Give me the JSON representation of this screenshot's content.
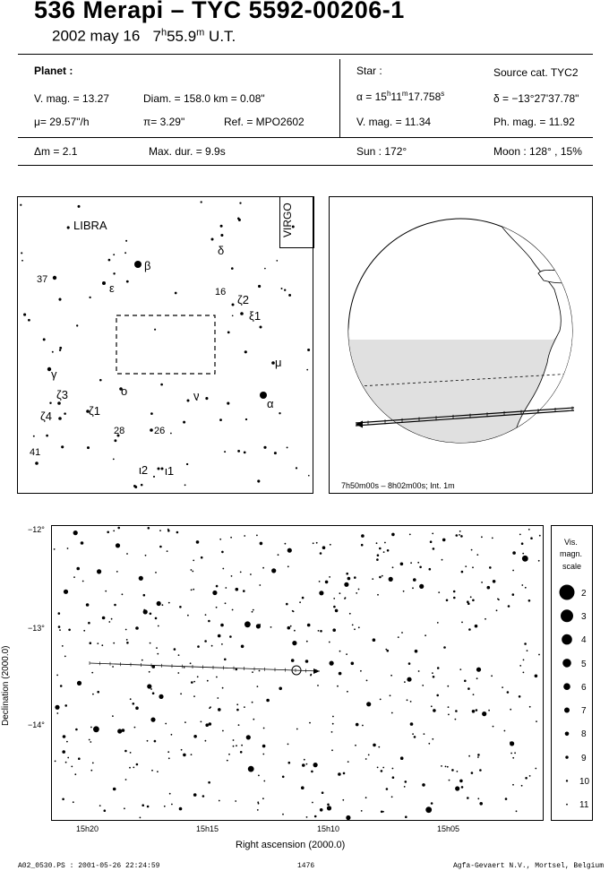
{
  "title": "536 Merapi  –  TYC 5592-00206-1",
  "date": "2002 may 16",
  "time_h": "7",
  "time_h_sup": "h",
  "time_m": "55.9",
  "time_m_sup": "m",
  "time_ut": " U.T.",
  "planet": {
    "heading": "Planet :",
    "vmag": "V. mag. = 13.27",
    "diam": "Diam. = 158.0 km = 0.08\"",
    "mu": "μ=  29.57\"/h",
    "pi": "π=  3.29\"",
    "ref": "Ref. = MPO2602"
  },
  "star": {
    "heading": "Star :",
    "source": "Source cat.  TYC2",
    "alpha_pre": "α = 15",
    "alpha_h": "h",
    "alpha_mid": "11",
    "alpha_m": "m",
    "alpha_post": "17.758",
    "alpha_s": "s",
    "delta": "δ = −13°27'37.78\"",
    "vmag": "V. mag. = 11.34",
    "phmag": "Ph. mag. = 11.92"
  },
  "summary": {
    "dm": "Δm = 2.1",
    "maxdur": "Max. dur. = 9.9s",
    "sun": "Sun : 172°",
    "moon": "Moon : 128° , 15%"
  },
  "finder": {
    "constellation": "LIBRA",
    "virgo": "VIRGO",
    "labels": [
      "β",
      "ε",
      "37",
      "δ",
      "16",
      "ζ2",
      "ξ1",
      "μ",
      "γ",
      "ο",
      "ν",
      "α",
      "ζ3",
      "ζ4",
      "ζ1",
      "28",
      "26",
      "41",
      "ι2",
      "ι1"
    ]
  },
  "globe": {
    "caption": "7h50m00s –  8h02m00s; Int.  1m"
  },
  "starchart": {
    "dec_ticks": [
      "−12°",
      "−13°",
      "−14°"
    ],
    "ra_ticks": [
      "15h20",
      "15h15",
      "15h10",
      "15h05"
    ],
    "xlabel": "Right ascension (2000.0)",
    "ylabel": "Declination (2000.0)"
  },
  "scale": {
    "title_line1": "Vis.",
    "title_line2": "magn.",
    "title_line3": "scale",
    "mags": [
      "2",
      "3",
      "4",
      "5",
      "6",
      "7",
      "8",
      "9",
      "10",
      "11"
    ]
  },
  "footer": {
    "left": "A02_0530.PS : 2001-05-26 22:24:59",
    "center": "1476",
    "right": "Agfa-Gevaert N.V., Mortsel, Belgium"
  }
}
